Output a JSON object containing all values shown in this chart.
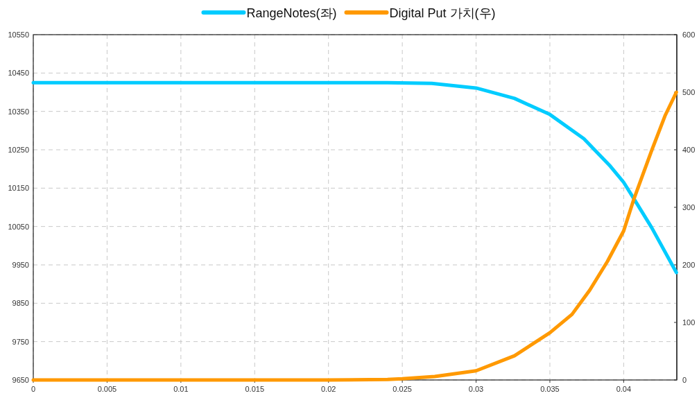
{
  "chart_data": {
    "type": "line",
    "xlim": [
      0,
      0.0436
    ],
    "xticks": [
      0,
      0.005,
      0.01,
      0.015,
      0.02,
      0.025,
      0.03,
      0.035,
      0.04
    ],
    "ylim": [
      9650,
      10550
    ],
    "yticks": [
      9650,
      9750,
      9850,
      9950,
      10050,
      10150,
      10250,
      10350,
      10450,
      10550
    ],
    "y2lim": [
      0,
      600
    ],
    "y2ticks": [
      0,
      100,
      200,
      300,
      400,
      500,
      600
    ],
    "grid": true,
    "legend": "top",
    "marker": "none",
    "line_style": "solid",
    "series": [
      {
        "name": "RangeNotes(좌)",
        "color": "#00ccff",
        "x": [
          0,
          0.01,
          0.02,
          0.024,
          0.027,
          0.03,
          0.0326,
          0.035,
          0.0373,
          0.0391,
          0.04,
          0.0407,
          0.0419,
          0.04357
        ],
        "values": [
          10425,
          10425,
          10425,
          10425,
          10423,
          10411,
          10384,
          10342,
          10279,
          10207,
          10165,
          10122,
          10047,
          9930
        ]
      },
      {
        "name": "Digital Put 가치(우)",
        "color": "#ff9900",
        "axis": "y2",
        "x": [
          0,
          0.01,
          0.02,
          0.024,
          0.025,
          0.0272,
          0.03,
          0.0326,
          0.035,
          0.0365,
          0.0377,
          0.0389,
          0.04,
          0.0407,
          0.0419,
          0.0428,
          0.04357
        ],
        "values": [
          0,
          0,
          0,
          1,
          2,
          6,
          16,
          42,
          82,
          114,
          156,
          206,
          259,
          315,
          399,
          459,
          500
        ]
      }
    ]
  }
}
